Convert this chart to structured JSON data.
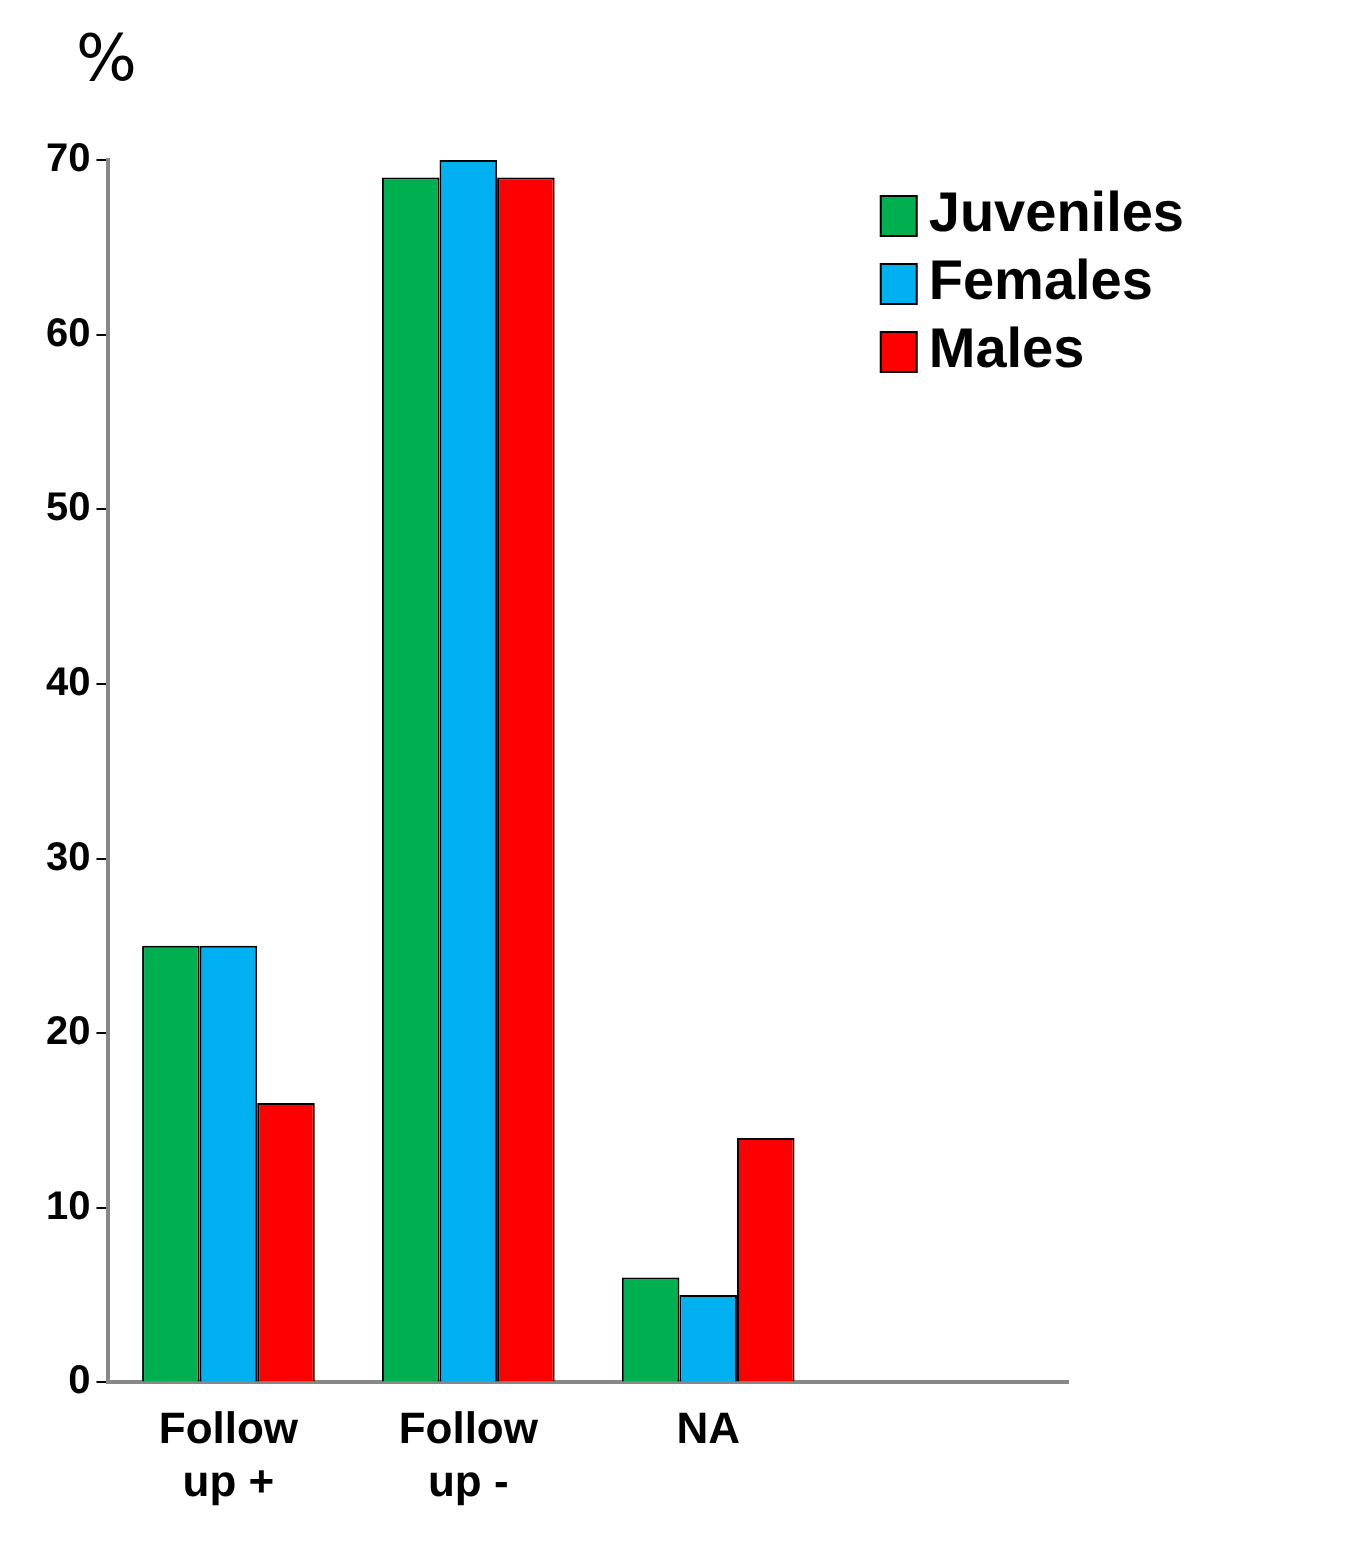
{
  "chart_data": {
    "type": "bar",
    "ylabel": "%",
    "categories": [
      "Follow up +",
      "Follow up -",
      "NA",
      null
    ],
    "series": [
      {
        "name": "Juveniles",
        "color": "#00b050",
        "values": [
          25,
          69,
          6,
          null
        ]
      },
      {
        "name": "Females",
        "color": "#00b0f0",
        "values": [
          25,
          70,
          5,
          null
        ]
      },
      {
        "name": "Males",
        "color": "#ff0000",
        "values": [
          16,
          69,
          14,
          null
        ]
      }
    ],
    "ylim": [
      0,
      70
    ],
    "yticks": [
      0,
      10,
      20,
      30,
      40,
      50,
      60,
      70
    ],
    "grid": false,
    "legend": "top right"
  }
}
